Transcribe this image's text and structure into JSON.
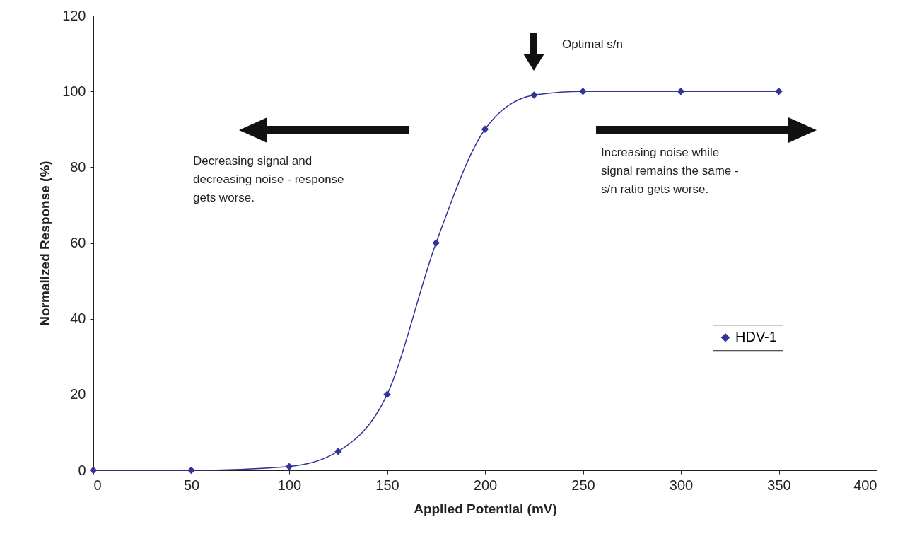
{
  "chart_data": {
    "type": "line",
    "xlabel": "Applied Potential (mV)",
    "ylabel": "Normalized Response (%)",
    "x": [
      0,
      50,
      100,
      125,
      150,
      175,
      200,
      225,
      250,
      300,
      350
    ],
    "series": [
      {
        "name": "HDV-1",
        "color": "#333399",
        "values": [
          0,
          0,
          1,
          5,
          20,
          60,
          90,
          99,
          100,
          100,
          100
        ]
      }
    ],
    "xlim": [
      0,
      400
    ],
    "xticks": [
      0,
      50,
      100,
      150,
      200,
      250,
      300,
      350,
      400
    ],
    "ylim": [
      0,
      120
    ],
    "yticks": [
      0,
      20,
      40,
      60,
      80,
      100,
      120
    ],
    "marker": "diamond",
    "legend": "right",
    "grid": false,
    "annotations": [
      "Optimal s/n",
      "Decreasing signal and\ndecreasing noise - response\ngets worse.",
      "Increasing noise while\nsignal remains the same -\ns/n ratio gets worse."
    ]
  }
}
